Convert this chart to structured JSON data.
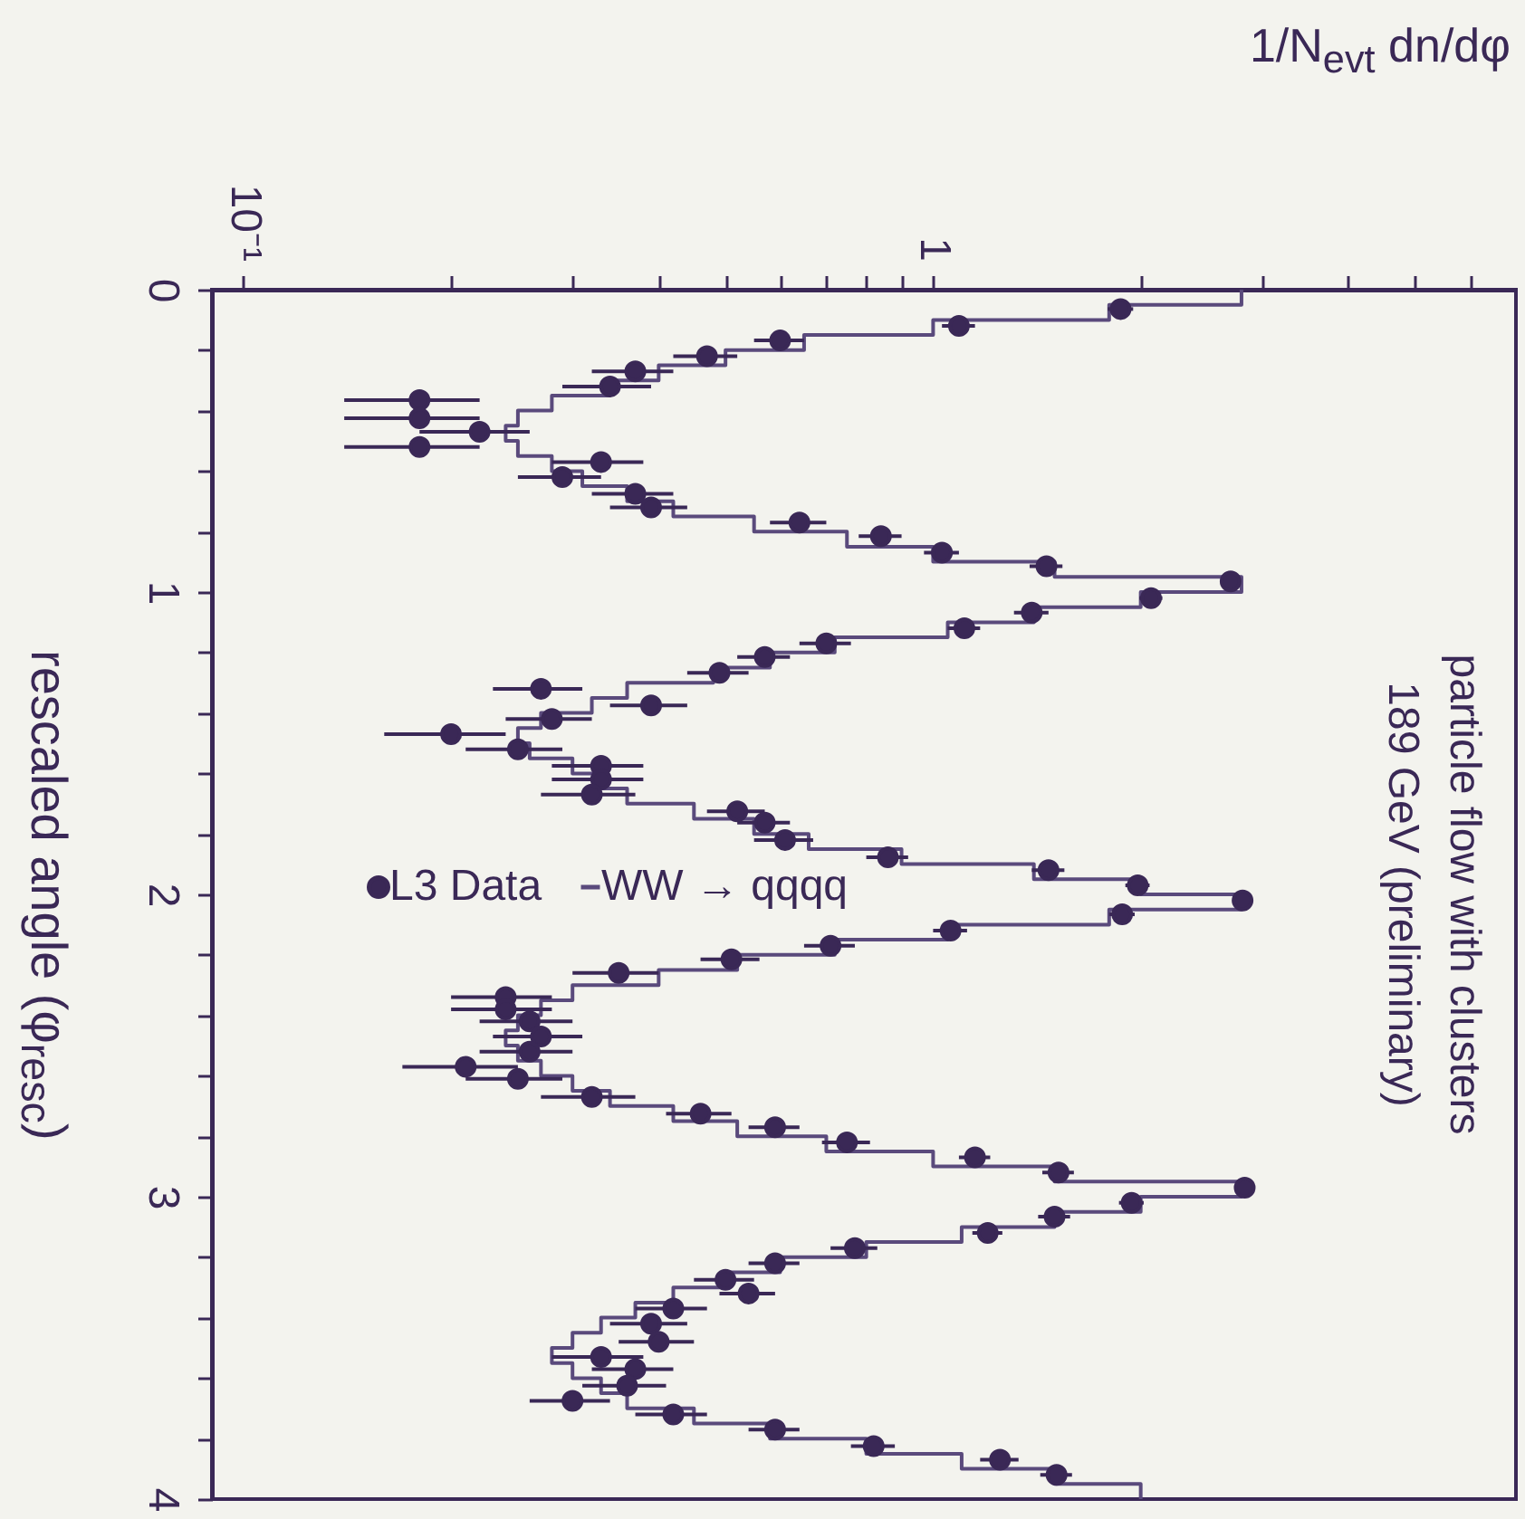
{
  "chart_data": {
    "type": "scatter",
    "title": "particle flow with clusters",
    "subtitle": "189 GeV (preliminary)",
    "xlabel": "1/N$_{evt}$ dn/dφ",
    "ylabel": "rescaled angle (φ$_{resc}$)",
    "log": "x",
    "grid": false,
    "legend": "left",
    "xlim": [
      0.09,
      7
    ],
    "ylim": [
      4,
      0
    ],
    "xticks": [
      {
        "value": 0.1,
        "label": "10⁻¹"
      },
      {
        "value": 0.2,
        "label": null
      },
      {
        "value": 0.3,
        "label": null
      },
      {
        "value": 0.4,
        "label": null
      },
      {
        "value": 0.5,
        "label": null
      },
      {
        "value": 0.6,
        "label": null
      },
      {
        "value": 0.7,
        "label": null
      },
      {
        "value": 0.8,
        "label": null
      },
      {
        "value": 0.9,
        "label": null
      },
      1,
      {
        "value": 2,
        "label": null
      },
      {
        "value": 3,
        "label": null
      },
      {
        "value": 4,
        "label": null
      },
      {
        "value": 5,
        "label": null
      },
      {
        "value": 6,
        "label": null
      }
    ],
    "yticks": [
      0,
      {
        "value": 0.2,
        "label": null
      },
      {
        "value": 0.4,
        "label": null
      },
      {
        "value": 0.6,
        "label": null
      },
      {
        "value": 0.8,
        "label": null
      },
      1,
      {
        "value": 1.2,
        "label": null
      },
      {
        "value": 1.4,
        "label": null
      },
      {
        "value": 1.6,
        "label": null
      },
      {
        "value": 1.8,
        "label": null
      },
      2,
      {
        "value": 2.2,
        "label": null
      },
      {
        "value": 2.4,
        "label": null
      },
      {
        "value": 2.6,
        "label": null
      },
      {
        "value": 2.8,
        "label": null
      },
      3,
      {
        "value": 3.2,
        "label": null
      },
      {
        "value": 3.4,
        "label": null
      },
      {
        "value": 3.6,
        "label": null
      },
      {
        "value": 3.8,
        "label": null
      },
      4
    ],
    "series": [
      {
        "name": "WW → qqqq",
        "type": "line",
        "marker": "none",
        "color": "#5a4a7c",
        "x": [
          2.8,
          2.8,
          1.8,
          1.8,
          1.0,
          1.0,
          0.65,
          0.65,
          0.5,
          0.5,
          0.4,
          0.4,
          0.34,
          0.34,
          0.28,
          0.28,
          0.25,
          0.25,
          0.24,
          0.24,
          0.25,
          0.25,
          0.28,
          0.28,
          0.31,
          0.31,
          0.36,
          0.36,
          0.42,
          0.42,
          0.55,
          0.55,
          0.75,
          0.75,
          1.0,
          1.0,
          1.5,
          1.5,
          2.8,
          2.8,
          2.0,
          2.0,
          1.4,
          1.4,
          1.05,
          1.05,
          0.72,
          0.72,
          0.58,
          0.58,
          0.48,
          0.48,
          0.36,
          0.36,
          0.32,
          0.32,
          0.27,
          0.27,
          0.25,
          0.25,
          0.26,
          0.26,
          0.3,
          0.3,
          0.33,
          0.33,
          0.36,
          0.36,
          0.45,
          0.45,
          0.55,
          0.55,
          0.66,
          0.66,
          0.9,
          0.9,
          1.4,
          1.4,
          2.0,
          2.0,
          2.8,
          2.8,
          1.8,
          1.8,
          1.05,
          1.05,
          0.72,
          0.72,
          0.52,
          0.52,
          0.4,
          0.4,
          0.3,
          0.3,
          0.27,
          0.27,
          0.25,
          0.25,
          0.24,
          0.24,
          0.25,
          0.25,
          0.27,
          0.27,
          0.3,
          0.3,
          0.34,
          0.34,
          0.42,
          0.42,
          0.52,
          0.52,
          0.7,
          0.7,
          1.0,
          1.0,
          1.5,
          1.5,
          2.8,
          2.8,
          2.0,
          2.0,
          1.5,
          1.5,
          1.1,
          1.1,
          0.8,
          0.8,
          0.6,
          0.6,
          0.5,
          0.5,
          0.42,
          0.42,
          0.37,
          0.37,
          0.33,
          0.33,
          0.3,
          0.3,
          0.28,
          0.28,
          0.3,
          0.3,
          0.33,
          0.33,
          0.36,
          0.36,
          0.45,
          0.45,
          0.58,
          0.58,
          0.8,
          0.8,
          1.1,
          1.1,
          1.5,
          1.5,
          2.0,
          2.0
        ],
        "values": [
          0,
          0.05,
          0.05,
          0.1,
          0.1,
          0.15,
          0.15,
          0.2,
          0.2,
          0.25,
          0.25,
          0.3,
          0.3,
          0.35,
          0.35,
          0.4,
          0.4,
          0.45,
          0.45,
          0.5,
          0.5,
          0.55,
          0.55,
          0.6,
          0.6,
          0.65,
          0.65,
          0.7,
          0.7,
          0.75,
          0.75,
          0.8,
          0.8,
          0.85,
          0.85,
          0.9,
          0.9,
          0.95,
          0.95,
          1.0,
          1.0,
          1.05,
          1.05,
          1.1,
          1.1,
          1.15,
          1.15,
          1.2,
          1.2,
          1.25,
          1.25,
          1.3,
          1.3,
          1.35,
          1.35,
          1.4,
          1.4,
          1.45,
          1.45,
          1.5,
          1.5,
          1.55,
          1.55,
          1.6,
          1.6,
          1.65,
          1.65,
          1.7,
          1.7,
          1.75,
          1.75,
          1.8,
          1.8,
          1.85,
          1.85,
          1.9,
          1.9,
          1.95,
          1.95,
          2.0,
          2.0,
          2.05,
          2.05,
          2.1,
          2.1,
          2.15,
          2.15,
          2.2,
          2.2,
          2.25,
          2.25,
          2.3,
          2.3,
          2.35,
          2.35,
          2.4,
          2.4,
          2.45,
          2.45,
          2.5,
          2.5,
          2.55,
          2.55,
          2.6,
          2.6,
          2.65,
          2.65,
          2.7,
          2.7,
          2.75,
          2.75,
          2.8,
          2.8,
          2.85,
          2.85,
          2.9,
          2.9,
          2.95,
          2.95,
          3.0,
          3.0,
          3.05,
          3.05,
          3.1,
          3.1,
          3.15,
          3.15,
          3.2,
          3.2,
          3.25,
          3.25,
          3.3,
          3.3,
          3.35,
          3.35,
          3.4,
          3.4,
          3.45,
          3.45,
          3.5,
          3.5,
          3.55,
          3.55,
          3.6,
          3.6,
          3.65,
          3.65,
          3.7,
          3.7,
          3.75,
          3.75,
          3.8,
          3.8,
          3.85,
          3.85,
          3.9,
          3.9,
          3.95,
          3.95,
          4.0
        ]
      },
      {
        "name": "L3 Data",
        "marker": "circle",
        "color": "#3a2856",
        "x": [
          1.87,
          1.09,
          0.6,
          0.47,
          0.37,
          0.34,
          0.18,
          0.18,
          0.22,
          0.18,
          0.33,
          0.29,
          0.37,
          0.39,
          0.64,
          0.84,
          1.03,
          1.46,
          2.7,
          2.07,
          1.39,
          1.11,
          0.7,
          0.57,
          0.49,
          0.27,
          0.39,
          0.28,
          0.2,
          0.25,
          0.33,
          0.33,
          0.32,
          0.52,
          0.57,
          0.61,
          0.86,
          1.47,
          1.98,
          2.81,
          1.88,
          1.06,
          0.71,
          0.51,
          0.35,
          0.24,
          0.24,
          0.26,
          0.27,
          0.26,
          0.21,
          0.25,
          0.32,
          0.46,
          0.59,
          0.75,
          1.15,
          1.52,
          2.83,
          1.94,
          1.5,
          1.2,
          0.77,
          0.59,
          0.5,
          0.54,
          0.42,
          0.39,
          0.4,
          0.33,
          0.37,
          0.36,
          0.3,
          0.42,
          0.59,
          0.82,
          1.25,
          1.51
        ],
        "values": [
          0.064,
          0.12,
          0.168,
          0.22,
          0.27,
          0.32,
          0.365,
          0.425,
          0.47,
          0.52,
          0.57,
          0.62,
          0.675,
          0.72,
          0.77,
          0.815,
          0.87,
          0.915,
          0.965,
          1.02,
          1.068,
          1.12,
          1.17,
          1.215,
          1.267,
          1.32,
          1.375,
          1.42,
          1.47,
          1.52,
          1.575,
          1.62,
          1.67,
          1.725,
          1.763,
          1.82,
          1.877,
          1.92,
          1.97,
          2.02,
          2.066,
          2.12,
          2.17,
          2.215,
          2.26,
          2.34,
          2.38,
          2.42,
          2.47,
          2.52,
          2.57,
          2.61,
          2.67,
          2.725,
          2.77,
          2.82,
          2.87,
          2.92,
          2.97,
          3.02,
          3.066,
          3.12,
          3.17,
          3.22,
          3.275,
          3.32,
          3.37,
          3.42,
          3.48,
          3.53,
          3.57,
          3.625,
          3.675,
          3.72,
          3.77,
          3.825,
          3.87,
          3.92
        ],
        "xerrors": [
          0.08,
          0.06,
          0.05,
          0.05,
          0.05,
          0.05,
          0.04,
          0.04,
          0.04,
          0.04,
          0.05,
          0.04,
          0.05,
          0.05,
          0.06,
          0.06,
          0.06,
          0.08,
          0.08,
          0.08,
          0.08,
          0.06,
          0.06,
          0.05,
          0.05,
          0.04,
          0.05,
          0.04,
          0.04,
          0.04,
          0.05,
          0.05,
          0.05,
          0.05,
          0.05,
          0.06,
          0.06,
          0.08,
          0.08,
          0.08,
          0.08,
          0.06,
          0.06,
          0.05,
          0.05,
          0.04,
          0.04,
          0.04,
          0.04,
          0.04,
          0.04,
          0.04,
          0.05,
          0.05,
          0.05,
          0.06,
          0.06,
          0.08,
          0.08,
          0.08,
          0.08,
          0.06,
          0.06,
          0.05,
          0.05,
          0.05,
          0.05,
          0.05,
          0.05,
          0.05,
          0.05,
          0.05,
          0.04,
          0.05,
          0.05,
          0.06,
          0.08,
          0.08
        ]
      }
    ]
  }
}
